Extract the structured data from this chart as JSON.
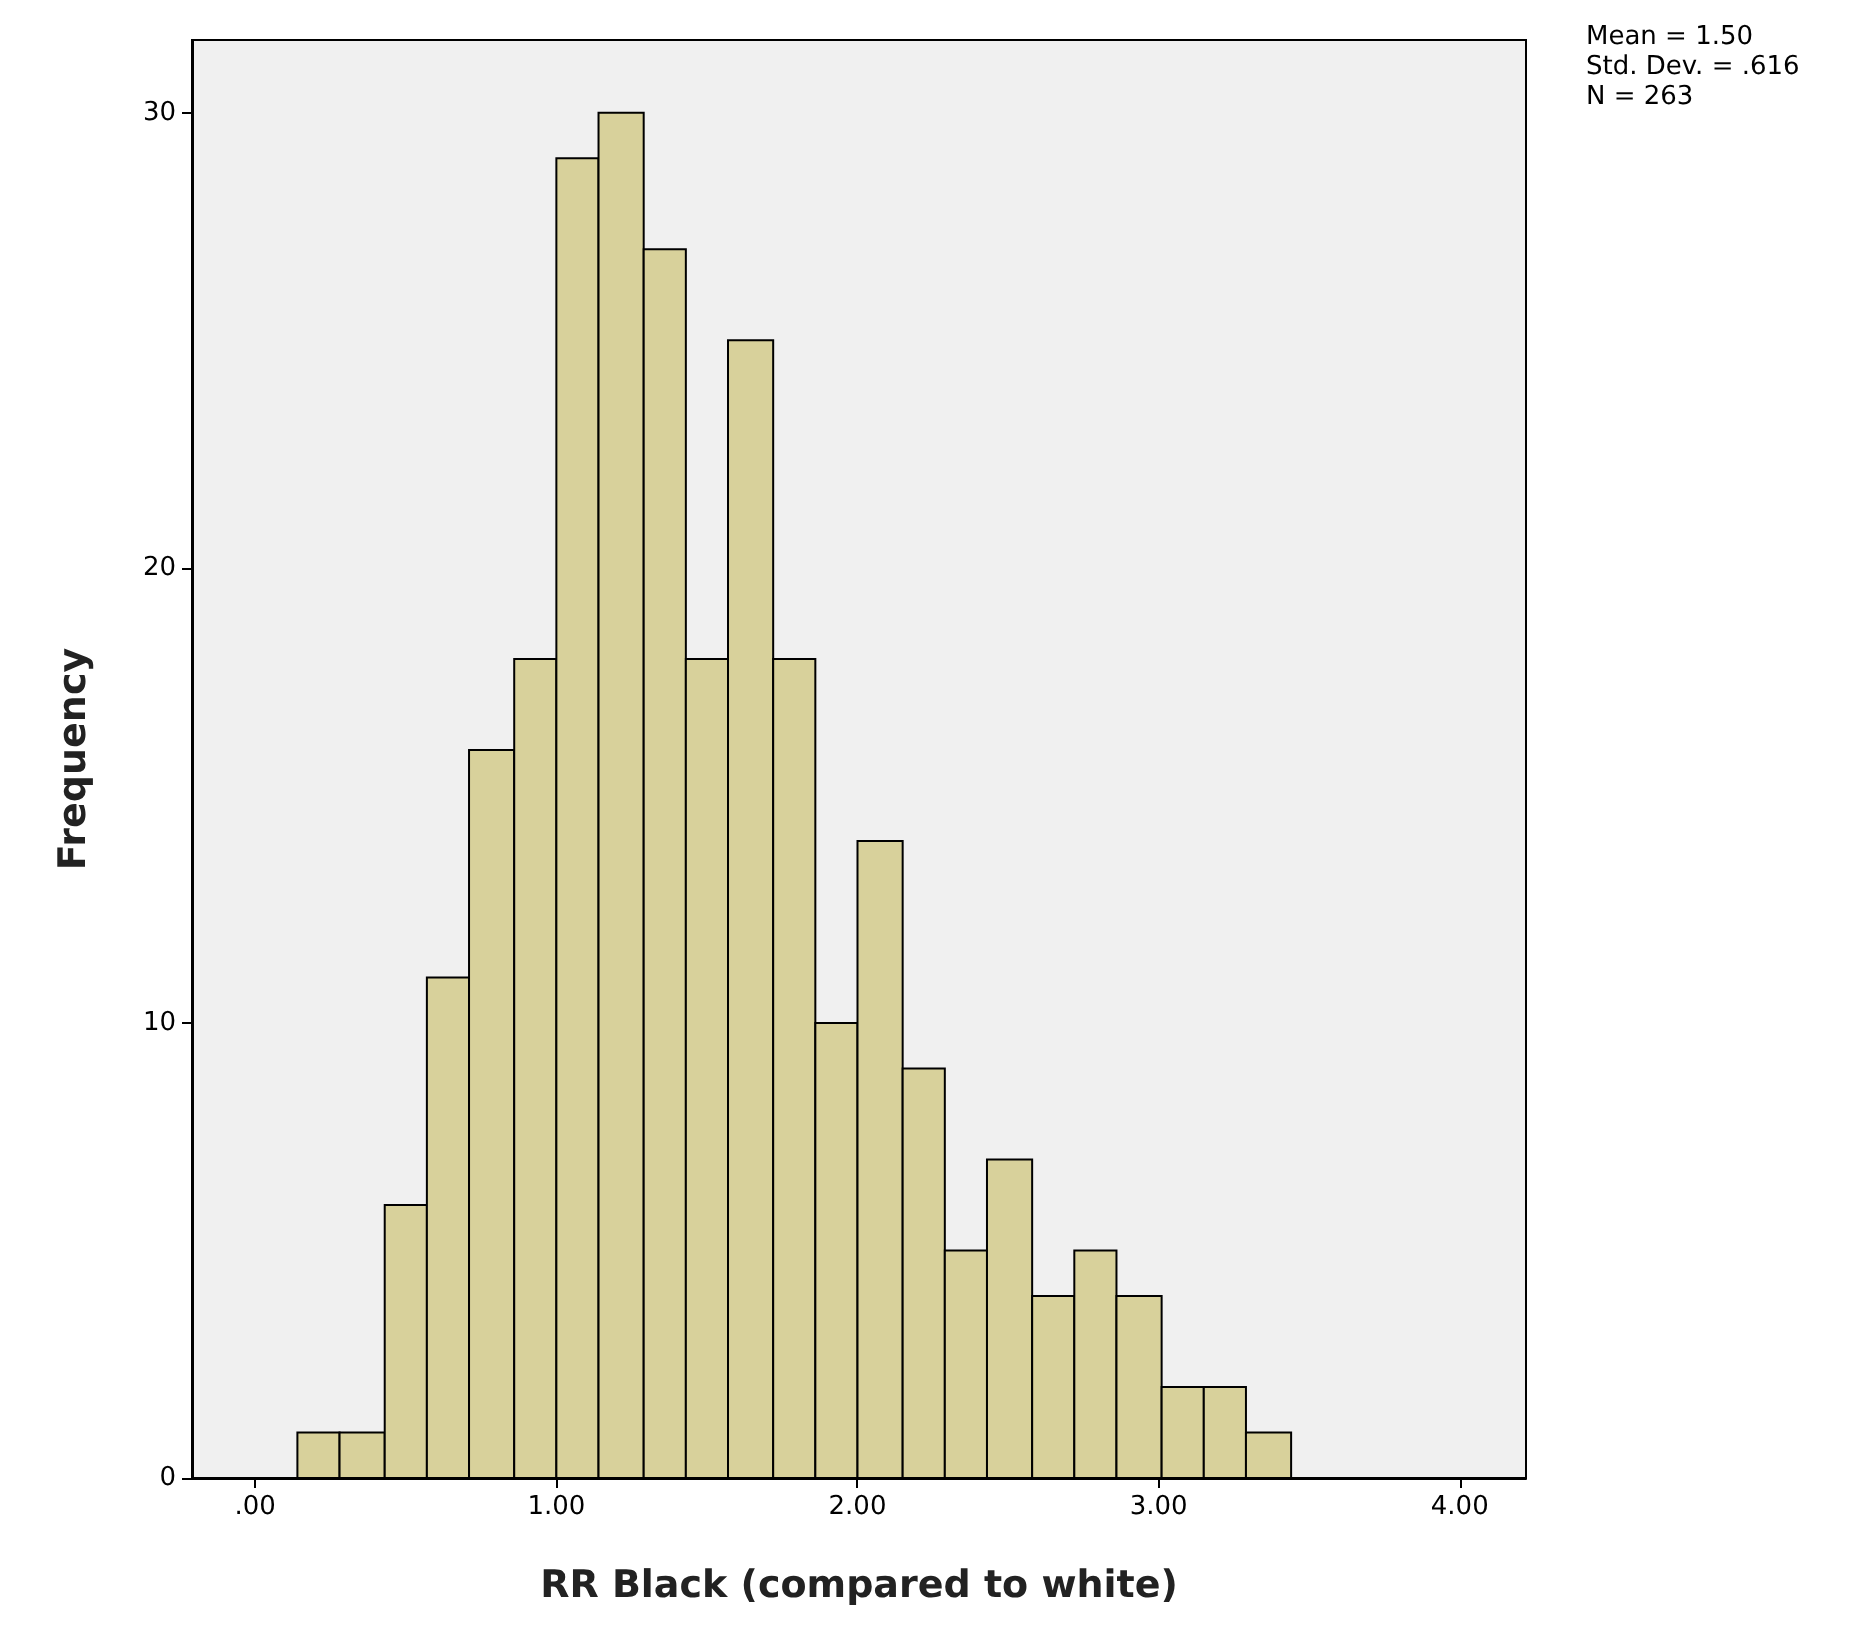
{
  "chart_data": {
    "type": "histogram",
    "xlabel": "RR Black (compared to white)",
    "ylabel": "Frequency",
    "bins": [
      0.14,
      0.28,
      0.43,
      0.57,
      0.71,
      0.86,
      1.0,
      1.14,
      1.29,
      1.43,
      1.57,
      1.72,
      1.86,
      2.0,
      2.15,
      2.29,
      2.43,
      2.58,
      2.72,
      2.86,
      3.01,
      3.15,
      3.29,
      3.44
    ],
    "values": [
      1,
      1,
      6,
      11,
      16,
      18,
      29,
      30,
      27,
      18,
      25,
      18,
      10,
      14,
      9,
      5,
      7,
      4,
      5,
      4,
      2,
      2,
      1
    ],
    "color": "#d8d19b",
    "xlim": [
      -0.21,
      4.22
    ],
    "ylim": [
      0,
      31.6
    ],
    "xticks": [
      {
        "value": 0,
        "label": ".00"
      },
      {
        "value": 1,
        "label": "1.00"
      },
      {
        "value": 2,
        "label": "2.00"
      },
      {
        "value": 3,
        "label": "3.00"
      },
      {
        "value": 4,
        "label": "4.00"
      }
    ],
    "yticks": [
      0,
      10,
      20,
      30
    ],
    "annotations": [
      "Mean = 1.50",
      "Std. Dev. = .616",
      "N = 263"
    ]
  }
}
